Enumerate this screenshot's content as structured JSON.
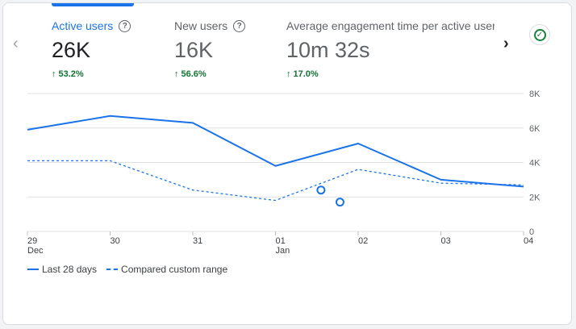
{
  "tabs": [
    {
      "label": "Active users",
      "value": "26K",
      "change": "53.2%",
      "active": true
    },
    {
      "label": "New users",
      "value": "16K",
      "change": "56.6%",
      "active": false
    },
    {
      "label": "Average engagement time per active user",
      "value": "10m 32s",
      "change": "17.0%",
      "active": false
    }
  ],
  "icons": {
    "help": "?",
    "up_arrow": "↑",
    "nav_prev": "‹",
    "nav_next": "›",
    "check": "✓"
  },
  "colors": {
    "accent": "#1a73e8",
    "positive": "#137333",
    "grid": "#e0e0e0"
  },
  "legend": {
    "current": "Last 28 days",
    "compared": "Compared custom range"
  },
  "chart_data": {
    "type": "line",
    "categories": [
      "29 Dec",
      "30",
      "31",
      "01 Jan",
      "02",
      "03",
      "04"
    ],
    "x_tick_labels": [
      {
        "day": "29",
        "month": "Dec"
      },
      {
        "day": "30",
        "month": ""
      },
      {
        "day": "31",
        "month": ""
      },
      {
        "day": "01",
        "month": "Jan"
      },
      {
        "day": "02",
        "month": ""
      },
      {
        "day": "03",
        "month": ""
      },
      {
        "day": "04",
        "month": ""
      }
    ],
    "y_ticks": [
      0,
      2000,
      4000,
      6000,
      8000
    ],
    "y_tick_labels": [
      "0",
      "2K",
      "4K",
      "6K",
      "8K"
    ],
    "ylim": [
      0,
      8000
    ],
    "series": [
      {
        "name": "Last 28 days",
        "style": "solid",
        "values": [
          5900,
          6700,
          6300,
          3800,
          5100,
          3000,
          2600
        ]
      },
      {
        "name": "Compared custom range",
        "style": "dashed",
        "values": [
          4100,
          4100,
          2400,
          1800,
          3600,
          2800,
          2700
        ]
      }
    ],
    "markers": [
      {
        "x": 3.55,
        "y": 2400
      },
      {
        "x": 3.78,
        "y": 1700
      }
    ]
  }
}
